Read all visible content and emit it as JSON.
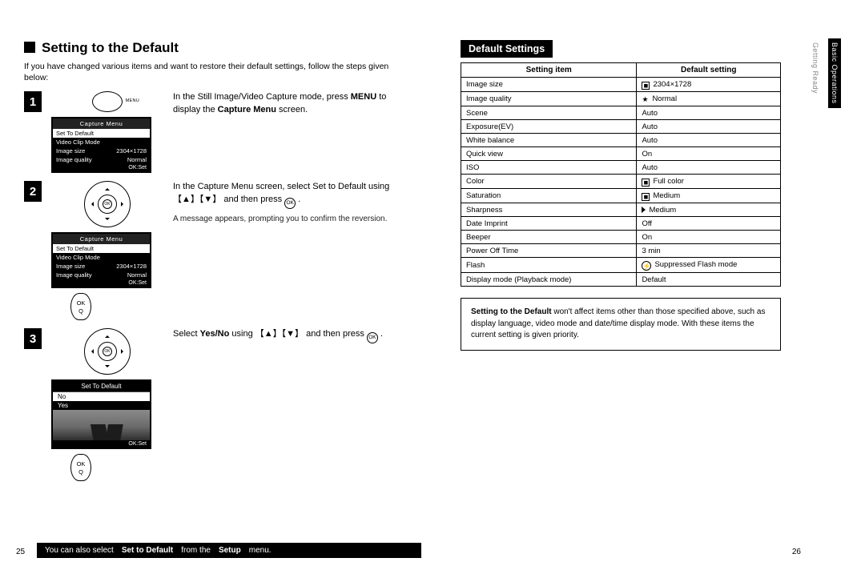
{
  "header": {
    "title": "Setting to the Default"
  },
  "intro": "If you have changed various items and want to restore their default settings, follow the steps given below:",
  "steps": [
    {
      "num": "1",
      "text_a": "In the Still Image/Video Capture mode, press ",
      "text_b": "MENU",
      "text_c": " to display the ",
      "text_d": "Capture Menu",
      "text_e": " screen."
    },
    {
      "num": "2",
      "text_a": "In the Capture Menu screen, select Set to Default using   ",
      "keys": "【▲】【▼】",
      "text_b": " and then press  ",
      "sub": "A message appears, prompting you to confirm the reversion."
    },
    {
      "num": "3",
      "text_a": "Select ",
      "text_b": "Yes/No",
      "text_c": " using   ",
      "keys": "【▲】【▼】",
      "text_d": " and then press  "
    }
  ],
  "miniScreen": {
    "title": "Capture Menu",
    "r1": "Set To Default",
    "r2": "Video Clip Mode",
    "r3l": "Image size",
    "r3r": "2304×1728",
    "r4l": "Image quality",
    "r4r": "Normal",
    "foot": "OK:Set"
  },
  "confirm": {
    "title": "Set To Default",
    "opt1": "No",
    "opt2": "Yes",
    "foot": "OK:Set"
  },
  "ok": {
    "top": "OK",
    "bot": "Q"
  },
  "footer": {
    "text_a": "You can also select ",
    "text_b": "Set to Default",
    "text_c": " from the ",
    "text_d": "Setup",
    "text_e": " menu."
  },
  "pageL": "25",
  "pageR": "26",
  "right": {
    "title": "Default Settings",
    "th1": "Setting item",
    "th2": "Default setting",
    "rows": [
      [
        "Image size",
        "2304×1728",
        "box"
      ],
      [
        "Image quality",
        "Normal",
        "star"
      ],
      [
        "Scene",
        "Auto",
        ""
      ],
      [
        "Exposure(EV)",
        "Auto",
        ""
      ],
      [
        "White balance",
        "Auto",
        ""
      ],
      [
        "Quick view",
        "On",
        ""
      ],
      [
        "ISO",
        "Auto",
        ""
      ],
      [
        "Color",
        "Full color",
        "box"
      ],
      [
        "Saturation",
        "Medium",
        "box"
      ],
      [
        "Sharpness",
        "Medium",
        "tri"
      ],
      [
        "Date Imprint",
        "Off",
        ""
      ],
      [
        "Beeper",
        "On",
        ""
      ],
      [
        "Power Off Time",
        "3 min",
        ""
      ],
      [
        "Flash",
        "Suppressed Flash mode",
        "flash"
      ],
      [
        "Display mode (Playback mode)",
        "Default",
        ""
      ]
    ],
    "note_a": "Setting to the Default",
    "note_b": " won't affect items other than those specified above, such as display language, video mode and date/time display mode. With these items the current setting is given priority."
  },
  "sidetab": {
    "a": "Basic Operations",
    "b": "Getting Ready"
  },
  "okcircle": "OK"
}
